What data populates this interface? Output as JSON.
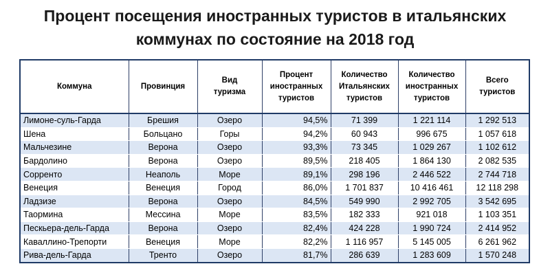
{
  "title": {
    "line1": "Процент посещения иностранных туристов в итальянских",
    "line2": "коммунах по состояние на 2018 год"
  },
  "table": {
    "headers": [
      "Коммуна",
      "Провинция",
      "Вид\nтуризма",
      "Процент\nиностранных\nтуристов",
      "Количество\nИтальянских\nтуристов",
      "Количество\nиностранных\nтуристов",
      "Всего\nтуристов"
    ],
    "rows": [
      [
        "Лимоне-суль-Гарда",
        "Брешия",
        "Озеро",
        "94,5%",
        "71 399",
        "1 221 114",
        "1 292 513"
      ],
      [
        "Шена",
        "Больцано",
        "Горы",
        "94,2%",
        "60 943",
        "996 675",
        "1 057 618"
      ],
      [
        "Мальчезине",
        "Верона",
        "Озеро",
        "93,3%",
        "73 345",
        "1 029 267",
        "1 102 612"
      ],
      [
        "Бардолино",
        "Верона",
        "Озеро",
        "89,5%",
        "218 405",
        "1 864 130",
        "2 082 535"
      ],
      [
        "Сорренто",
        "Неаполь",
        "Море",
        "89,1%",
        "298 196",
        "2 446 522",
        "2 744 718"
      ],
      [
        "Венеция",
        "Венеция",
        "Город",
        "86,0%",
        "1 701 837",
        "10 416 461",
        "12 118 298"
      ],
      [
        "Ладзизе",
        "Верона",
        "Озеро",
        "84,5%",
        "549 990",
        "2 992 705",
        "3 542 695"
      ],
      [
        "Таормина",
        "Мессина",
        "Море",
        "83,5%",
        "182 333",
        "921 018",
        "1 103 351"
      ],
      [
        "Пескьера-дель-Гарда",
        "Верона",
        "Озеро",
        "82,4%",
        "424 228",
        "1 990 724",
        "2 414 952"
      ],
      [
        "Каваллино-Трепорти",
        "Венеция",
        "Море",
        "82,2%",
        "1 116 957",
        "5 145 005",
        "6 261 962"
      ],
      [
        "Рива-дель-Гарда",
        "Тренто",
        "Озеро",
        "81,7%",
        "286 639",
        "1 283 609",
        "1 570 248"
      ]
    ]
  }
}
